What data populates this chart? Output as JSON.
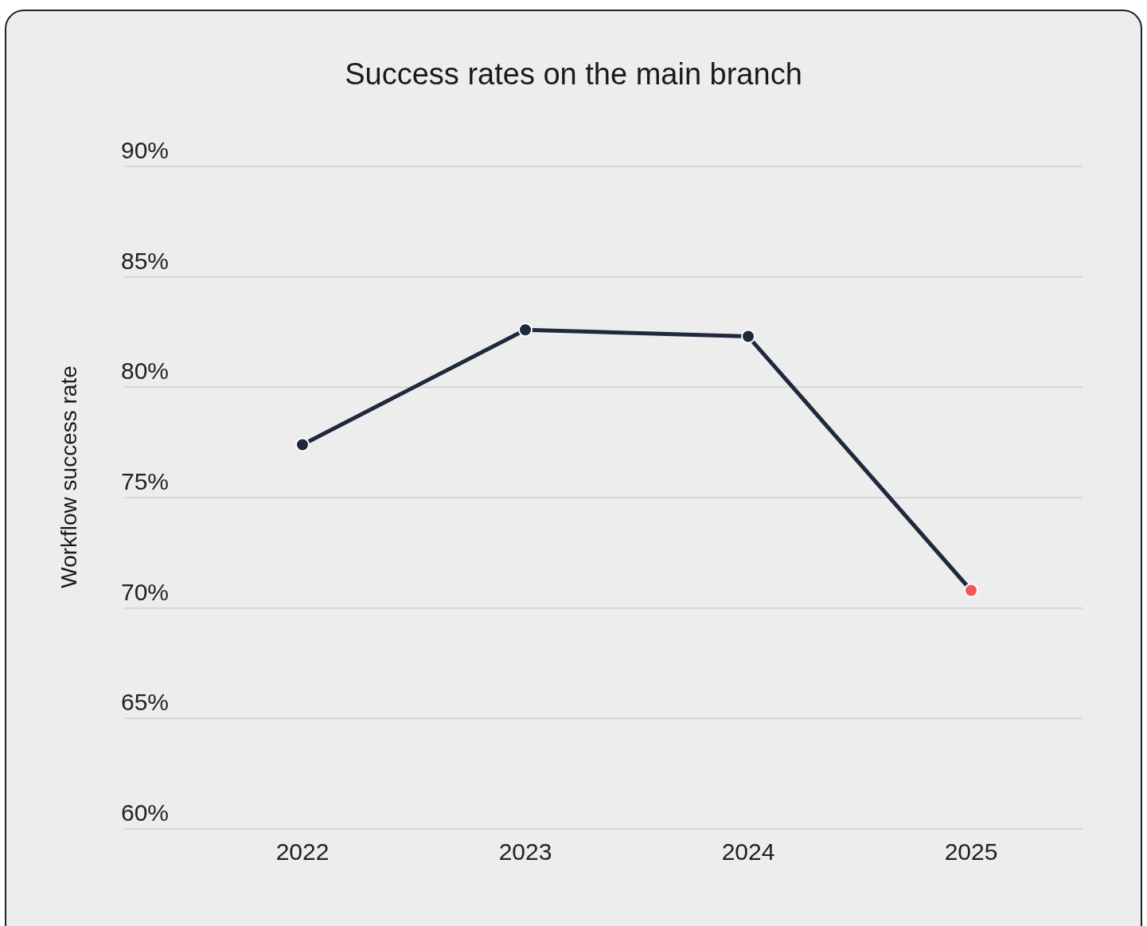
{
  "chart_data": {
    "type": "line",
    "title": "Success rates on the main branch",
    "ylabel": "Workflow success rate",
    "categories": [
      "2022",
      "2023",
      "2024",
      "2025"
    ],
    "series": [
      {
        "color": "#1e293b",
        "colors": [
          "#1e293b",
          "#1e293b",
          "#1e293b",
          "#f25757"
        ],
        "values": [
          77.4,
          82.6,
          82.3,
          70.8
        ]
      }
    ],
    "ylim": [
      60,
      90
    ],
    "yticks": [
      {
        "value": 60,
        "label": "60%"
      },
      {
        "value": 65,
        "label": "65%"
      },
      {
        "value": 70,
        "label": "70%"
      },
      {
        "value": 75,
        "label": "75%"
      },
      {
        "value": 80,
        "label": "80%"
      },
      {
        "value": 85,
        "label": "85%"
      },
      {
        "value": 90,
        "label": "90%"
      }
    ],
    "grid": "y",
    "legend": false,
    "marker": "circle",
    "line_style": "solid"
  }
}
